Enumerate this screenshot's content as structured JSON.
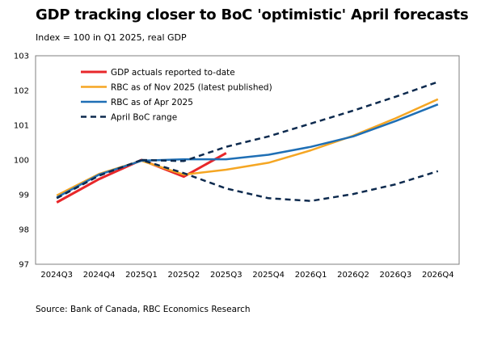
{
  "chart_data": {
    "type": "line",
    "title": "GDP tracking closer to BoC 'optimistic' April forecasts",
    "subtitle": "Index = 100 in Q1 2025, real GDP",
    "source": "Source: Bank of Canada, RBC Economics Research",
    "categories": [
      "2024Q3",
      "2024Q4",
      "2025Q1",
      "2025Q2",
      "2025Q3",
      "2025Q4",
      "2026Q1",
      "2026Q2",
      "2026Q3",
      "2026Q4"
    ],
    "ylim": [
      97,
      103
    ],
    "yticks": [
      97,
      98,
      99,
      100,
      101,
      102,
      103
    ],
    "legend_position": "top-left",
    "series": [
      {
        "name": "GDP actuals reported to-date",
        "color": "#e8272a",
        "dash": "",
        "width": 3,
        "values": [
          98.78,
          99.45,
          100.0,
          99.52,
          100.2,
          null,
          null,
          null,
          null,
          null
        ]
      },
      {
        "name": "RBC as of Nov 2025 (latest published)",
        "color": "#f5a623",
        "dash": "",
        "width": 2.5,
        "values": [
          98.98,
          99.6,
          99.98,
          99.58,
          99.72,
          99.92,
          100.28,
          100.7,
          101.2,
          101.75
        ]
      },
      {
        "name": "RBC as of Apr 2025",
        "color": "#1f6fb5",
        "dash": "",
        "width": 2.5,
        "values": [
          98.92,
          99.58,
          99.98,
          100.02,
          100.02,
          100.15,
          100.38,
          100.68,
          101.12,
          101.6
        ]
      },
      {
        "name": "April BoC range",
        "color": "#0d2a4e",
        "dash": "7,5",
        "width": 2.5,
        "values": [
          98.9,
          99.55,
          100.0,
          99.62,
          99.18,
          98.9,
          98.82,
          99.02,
          99.3,
          99.68
        ]
      },
      {
        "name": "April BoC range (upper)",
        "color": "#0d2a4e",
        "dash": "7,5",
        "width": 2.5,
        "legend": false,
        "values": [
          null,
          null,
          100.0,
          99.97,
          100.38,
          100.68,
          101.05,
          101.42,
          101.82,
          102.25
        ]
      }
    ]
  }
}
